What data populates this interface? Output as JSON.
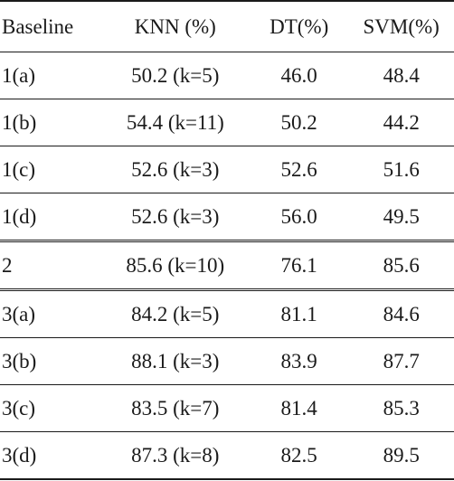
{
  "table": {
    "headers": [
      "Baseline",
      "KNN (%)",
      "DT(%)",
      "SVM(%)"
    ],
    "rows": [
      [
        "1(a)",
        "50.2 (k=5)",
        "46.0",
        "48.4"
      ],
      [
        "1(b)",
        "54.4 (k=11)",
        "50.2",
        "44.2"
      ],
      [
        "1(c)",
        "52.6 (k=3)",
        "52.6",
        "51.6"
      ],
      [
        "1(d)",
        "52.6 (k=3)",
        "56.0",
        "49.5"
      ],
      [
        "2",
        "85.6 (k=10)",
        "76.1",
        "85.6"
      ],
      [
        "3(a)",
        "84.2 (k=5)",
        "81.1",
        "84.6"
      ],
      [
        "3(b)",
        "88.1 (k=3)",
        "83.9",
        "87.7"
      ],
      [
        "3(c)",
        "83.5 (k=7)",
        "81.4",
        "85.3"
      ],
      [
        "3(d)",
        "87.3 (k=8)",
        "82.5",
        "89.5"
      ]
    ]
  }
}
